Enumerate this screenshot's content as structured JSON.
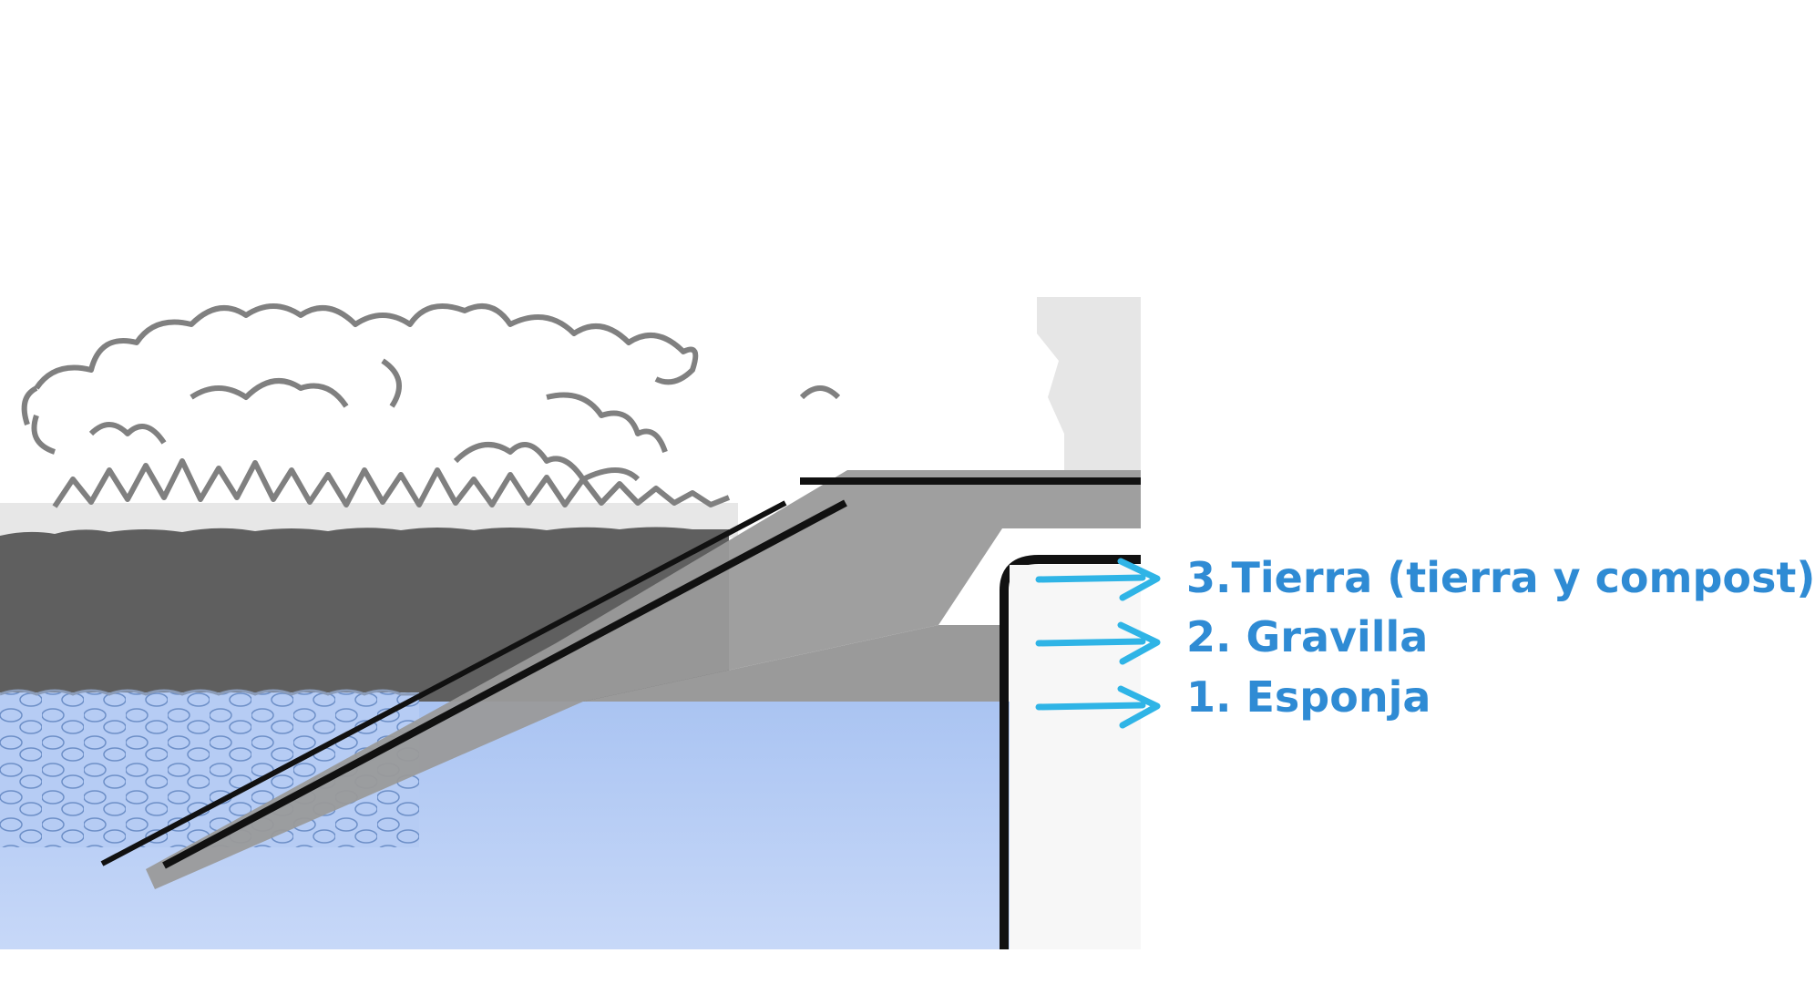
{
  "layers": [
    {
      "id": "tierra",
      "label": "3.Tierra (tierra y compost)"
    },
    {
      "id": "gravilla",
      "label": "2. Gravilla"
    },
    {
      "id": "esponja",
      "label": "1. Esponja"
    }
  ],
  "colors": {
    "label": "#2f8bd4",
    "arrow": "#2fb4e6",
    "water": "#b3ccf5",
    "soil": "#5f5f5f",
    "pipe_shadow": "#9a9a9a",
    "outline": "#111111"
  }
}
